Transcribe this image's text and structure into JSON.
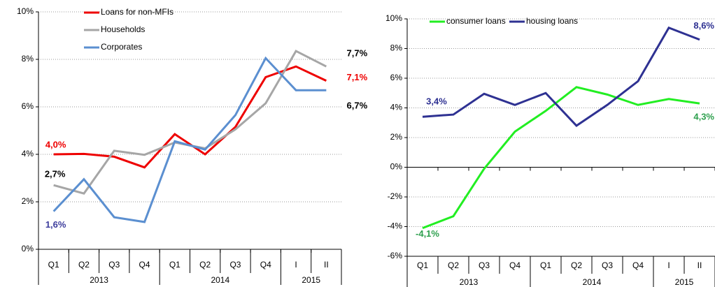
{
  "chart_data": [
    {
      "type": "line",
      "categories": [
        "Q1",
        "Q2",
        "Q3",
        "Q4",
        "Q1",
        "Q2",
        "Q3",
        "Q4",
        "I",
        "II"
      ],
      "groups": [
        {
          "name": "2013",
          "count": 4
        },
        {
          "name": "2014",
          "count": 4
        },
        {
          "name": "2015",
          "count": 2
        }
      ],
      "ylim": [
        0,
        10
      ],
      "yticks": [
        {
          "value": 0,
          "label": "0%"
        },
        {
          "value": 2,
          "label": "2%"
        },
        {
          "value": 4,
          "label": "4%"
        },
        {
          "value": 6,
          "label": "6%"
        },
        {
          "value": 8,
          "label": "8%"
        },
        {
          "value": 10,
          "label": "10%"
        }
      ],
      "grid": true,
      "legend": "upper left",
      "series": [
        {
          "name": "Loans for non-MFIs",
          "color": "#ee0000",
          "values": [
            4.0,
            4.02,
            3.9,
            3.45,
            4.85,
            4.0,
            5.15,
            7.25,
            7.7,
            7.1
          ],
          "value_labels": [
            "4,0%",
            null,
            null,
            null,
            null,
            null,
            null,
            null,
            null,
            "7,1%"
          ],
          "value_label_colors": [
            "#ee0000",
            null,
            null,
            null,
            null,
            null,
            null,
            null,
            null,
            "#ee0000"
          ]
        },
        {
          "name": "Households",
          "color": "#a6a6a6",
          "values": [
            2.7,
            2.35,
            4.15,
            3.98,
            4.5,
            4.25,
            5.05,
            6.15,
            8.35,
            7.7
          ],
          "value_labels": [
            "2,7%",
            null,
            null,
            null,
            null,
            null,
            null,
            null,
            null,
            "7,7%"
          ],
          "value_label_colors": [
            "#000000",
            null,
            null,
            null,
            null,
            null,
            null,
            null,
            null,
            "#000000"
          ]
        },
        {
          "name": "Corporates",
          "color": "#5b8fd0",
          "values": [
            1.6,
            2.95,
            1.35,
            1.15,
            4.55,
            4.2,
            5.65,
            8.05,
            6.7,
            6.7
          ],
          "value_labels": [
            "1,6%",
            null,
            null,
            null,
            null,
            null,
            null,
            null,
            null,
            "6,7%"
          ],
          "value_label_colors": [
            "#3c3c9c",
            null,
            null,
            null,
            null,
            null,
            null,
            null,
            null,
            "#000000"
          ]
        }
      ]
    },
    {
      "type": "line",
      "categories": [
        "Q1",
        "Q2",
        "Q3",
        "Q4",
        "Q1",
        "Q2",
        "Q3",
        "Q4",
        "I",
        "II"
      ],
      "groups": [
        {
          "name": "2013",
          "count": 4
        },
        {
          "name": "2014",
          "count": 4
        },
        {
          "name": "2015",
          "count": 2
        }
      ],
      "ylim": [
        -6,
        10
      ],
      "yticks": [
        {
          "value": -6,
          "label": "-6%"
        },
        {
          "value": -4,
          "label": "-4%"
        },
        {
          "value": -2,
          "label": "-2%"
        },
        {
          "value": 0,
          "label": "0%"
        },
        {
          "value": 2,
          "label": "2%"
        },
        {
          "value": 4,
          "label": "4%"
        },
        {
          "value": 6,
          "label": "6%"
        },
        {
          "value": 8,
          "label": "8%"
        },
        {
          "value": 10,
          "label": "10%"
        }
      ],
      "grid": true,
      "legend": "upper left",
      "series": [
        {
          "name": "consumer loans",
          "color": "#22ee22",
          "values": [
            -4.1,
            -3.3,
            -0.1,
            2.4,
            3.8,
            5.4,
            4.9,
            4.2,
            4.6,
            4.3
          ],
          "value_labels": [
            "-4,1%",
            null,
            null,
            null,
            null,
            null,
            null,
            null,
            null,
            "4,3%"
          ],
          "value_label_colors": [
            "#2ea04e",
            null,
            null,
            null,
            null,
            null,
            null,
            null,
            null,
            "#2ea04e"
          ]
        },
        {
          "name": "housing loans",
          "color": "#2e3192",
          "values": [
            3.4,
            3.55,
            4.95,
            4.2,
            5.0,
            2.8,
            4.2,
            5.8,
            9.4,
            8.6
          ],
          "value_labels": [
            "3,4%",
            null,
            null,
            null,
            null,
            null,
            null,
            null,
            null,
            "8,6%"
          ],
          "value_label_colors": [
            "#2e3192",
            null,
            null,
            null,
            null,
            null,
            null,
            null,
            null,
            "#2e3192"
          ]
        }
      ]
    }
  ]
}
